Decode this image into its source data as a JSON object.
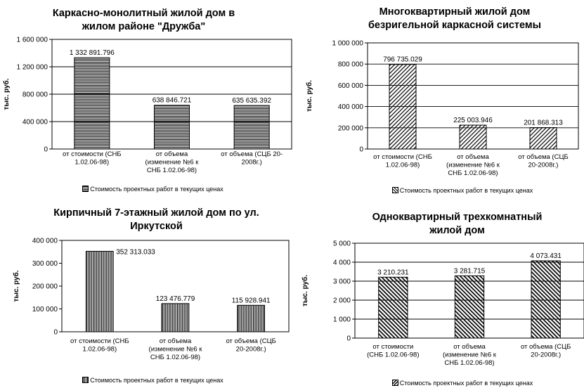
{
  "chart_data": [
    {
      "type": "bar",
      "title": "Каркасно-монолитный жилой дом в жилом районе \"Дружба\"",
      "title_lines": [
        "Каркасно-монолитный жилой дом в",
        "жилом районе \"Дружба\""
      ],
      "ylabel": "тыс. руб.",
      "ylim": [
        0,
        1600000
      ],
      "yticks": [
        0,
        400000,
        800000,
        1200000,
        1600000
      ],
      "ytick_labels": [
        "0",
        "400 000",
        "800 000",
        "1 200 000",
        "1 600 000"
      ],
      "grid": true,
      "categories": [
        "от стоимости (СНБ 1.02.06-98)",
        "от объема (изменение №6 к СНБ 1.02.06-98)",
        "от объема (СЦБ 20-2008г.)"
      ],
      "category_lines": [
        [
          "от стоимости (СНБ",
          "1.02.06-98)"
        ],
        [
          "от объема",
          "(изменение №6 к",
          "СНБ 1.02.06-98)"
        ],
        [
          "от объема (СЦБ 20-",
          "2008г.)"
        ]
      ],
      "values": [
        1332891.796,
        638846.721,
        635635.392
      ],
      "data_labels": [
        "1 332 891.796",
        "638 846.721",
        "635 635.392"
      ],
      "legend": "Стоимость проектных работ в текущих ценах",
      "legend_position": "bottom",
      "pattern": "horizontal"
    },
    {
      "type": "bar",
      "title": "Многоквартирный жилой дом безригельной каркасной системы",
      "title_lines": [
        "Многоквартирный жилой дом",
        "безригельной каркасной системы"
      ],
      "ylabel": "тыс. руб.",
      "ylim": [
        0,
        1000000
      ],
      "yticks": [
        0,
        200000,
        400000,
        600000,
        800000,
        1000000
      ],
      "ytick_labels": [
        "0",
        "200 000",
        "400 000",
        "600 000",
        "800 000",
        "1 000 000"
      ],
      "grid": true,
      "categories": [
        "от стоимости (СНБ 1.02.06-98)",
        "от объема (изменение №6 к СНБ 1.02.06-98)",
        "от объема (СЦБ 20-2008г.)"
      ],
      "category_lines": [
        [
          "от стоимости (СНБ",
          "1.02.06-98)"
        ],
        [
          "от объема",
          "(изменение №6 к",
          "СНБ 1.02.06-98)"
        ],
        [
          "от объема (СЦБ",
          "20-2008г.)"
        ]
      ],
      "values": [
        796735.029,
        225003.946,
        201868.313
      ],
      "data_labels": [
        "796 735.029",
        "225 003.946",
        "201 868.313"
      ],
      "legend": "Стоимость проектных работ в текущих ценах",
      "legend_position": "bottom",
      "pattern": "diagonal"
    },
    {
      "type": "bar",
      "title": "Кирпичный 7-этажный жилой дом по ул. Иркутской",
      "title_lines": [
        "Кирпичный 7-этажный жилой дом по ул.",
        "Иркутской"
      ],
      "ylabel": "тыс. руб.",
      "ylim": [
        0,
        400000
      ],
      "yticks": [
        0,
        100000,
        200000,
        300000,
        400000
      ],
      "ytick_labels": [
        "0",
        "100 000",
        "200 000",
        "300 000",
        "400 000"
      ],
      "grid": false,
      "categories": [
        "от стоимости (СНБ 1.02.06-98)",
        "от объема (изменение №6 к СНБ 1.02.06-98)",
        "от объема (СЦБ 20-2008г.)"
      ],
      "category_lines": [
        [
          "от стоимости (СНБ",
          "1.02.06-98)"
        ],
        [
          "от объема",
          "(изменение №6 к",
          "СНБ 1.02.06-98)"
        ],
        [
          "от объема (СЦБ",
          "20-2008г.)"
        ]
      ],
      "values": [
        352313.033,
        123476.779,
        115928.941
      ],
      "data_labels": [
        "352 313.033",
        "123 476.779",
        "115 928.941"
      ],
      "legend": "Стоимость проектных работ в текущих ценах",
      "legend_position": "bottom",
      "pattern": "vertical"
    },
    {
      "type": "bar",
      "title": "Одноквартирный трехкомнатный жилой дом",
      "title_lines": [
        "Одноквартирный трехкомнатный",
        "жилой дом"
      ],
      "ylabel": "тыс. руб.",
      "ylim": [
        0,
        5000
      ],
      "yticks": [
        0,
        1000,
        2000,
        3000,
        4000,
        5000
      ],
      "ytick_labels": [
        "0",
        "1 000",
        "2 000",
        "3 000",
        "4 000",
        "5 000"
      ],
      "grid": true,
      "categories": [
        "от стоимости (СНБ 1.02.06-98)",
        "от объема (изменение №6 к СНБ 1.02.06-98)",
        "от объема (СЦБ 20-2008г.)"
      ],
      "category_lines": [
        [
          "от стоимости",
          "(СНБ 1.02.06-98)"
        ],
        [
          "от объема",
          "(изменение №6 к",
          "СНБ 1.02.06-98)"
        ],
        [
          "от объема (СЦБ",
          "20-2008г.)"
        ]
      ],
      "values": [
        3210.231,
        3281.715,
        4073.431
      ],
      "data_labels": [
        "3 210.231",
        "3 281.715",
        "4 073.431"
      ],
      "legend": "Стоимость проектных работ в текущих ценах",
      "legend_position": "bottom",
      "pattern": "backdiagonal"
    }
  ]
}
